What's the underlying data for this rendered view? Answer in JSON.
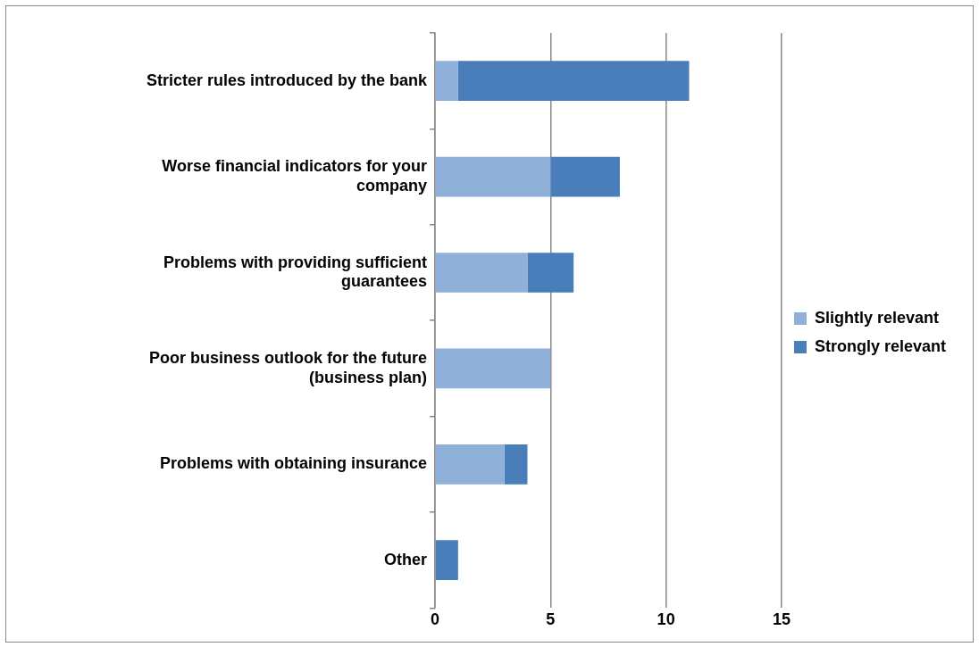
{
  "chart_data": {
    "type": "bar",
    "orientation": "horizontal",
    "stacked": true,
    "categories": [
      "Stricter rules introduced by the bank",
      "Worse financial indicators for your company",
      "Problems with providing sufficient guarantees",
      "Poor business outlook for the future (business plan)",
      "Problems with obtaining insurance",
      "Other"
    ],
    "series": [
      {
        "name": "Slightly relevant",
        "color": "#8fb0d8",
        "values": [
          1,
          5,
          4,
          5,
          3,
          0
        ]
      },
      {
        "name": "Strongly relevant",
        "color": "#4a7ebb",
        "values": [
          10,
          3,
          2,
          0,
          1,
          1
        ]
      }
    ],
    "xlim": [
      0,
      15
    ],
    "xticks": [
      0,
      5,
      10,
      15
    ],
    "grid": "x",
    "legend": "right"
  }
}
